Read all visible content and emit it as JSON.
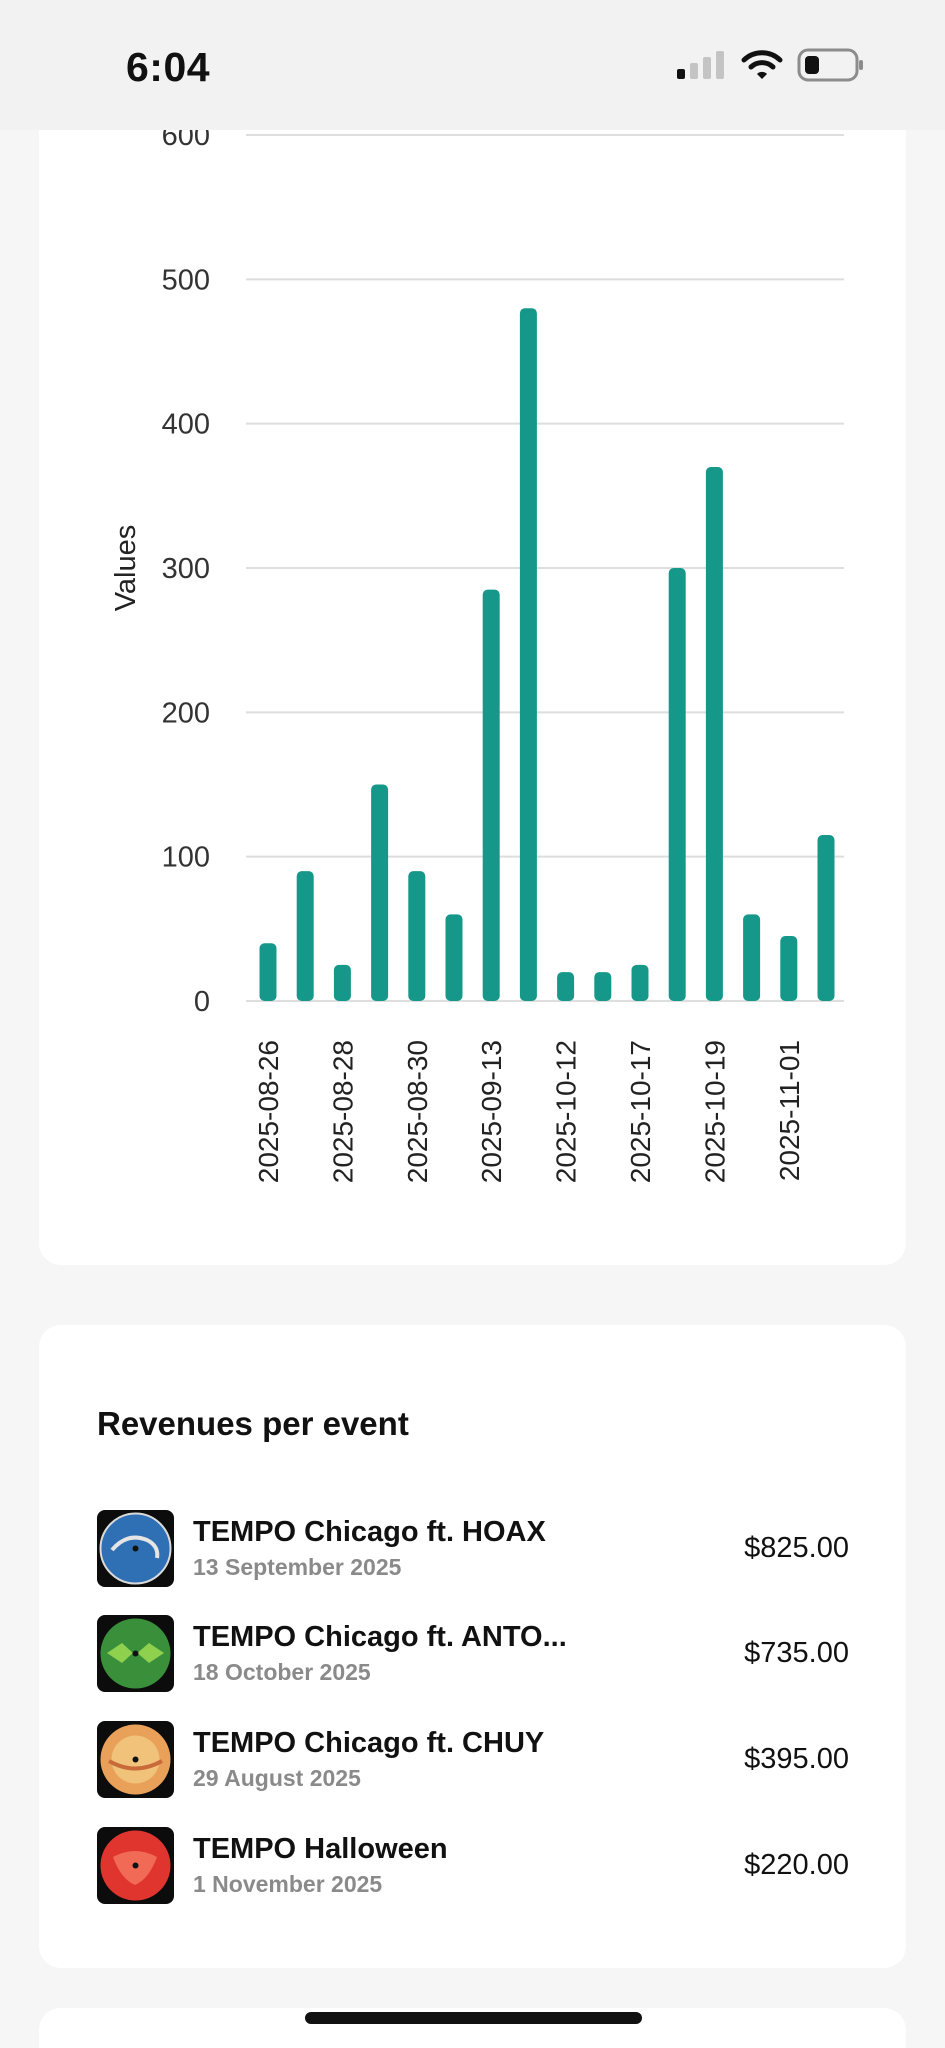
{
  "status_bar": {
    "time": "6:04"
  },
  "chart_data": {
    "type": "bar",
    "ylabel": "Values",
    "xlabel": "",
    "ylim": [
      0,
      600
    ],
    "yticks": [
      0,
      100,
      200,
      300,
      400,
      500,
      600
    ],
    "grid": true,
    "bar_color": "#15978a",
    "categories": [
      "2025-08-26",
      "",
      "2025-08-28",
      "",
      "2025-08-30",
      "",
      "2025-09-13",
      "",
      "2025-10-12",
      "",
      "2025-10-17",
      "",
      "2025-10-19",
      "",
      "2025-11-01",
      ""
    ],
    "values": [
      40,
      90,
      25,
      150,
      90,
      60,
      285,
      480,
      20,
      20,
      25,
      300,
      370,
      60,
      45,
      115
    ],
    "tick_labels": [
      "2025-08-26",
      "2025-08-28",
      "2025-08-30",
      "2025-09-13",
      "2025-10-12",
      "2025-10-17",
      "2025-10-19",
      "2025-11-01"
    ]
  },
  "revenues": {
    "title": "Revenues per event",
    "events": [
      {
        "name": "TEMPO Chicago ft. HOAX",
        "date": "13 September 2025",
        "amount": "$825.00",
        "thumb_color": "#2f6fb3"
      },
      {
        "name": "TEMPO Chicago ft. ANTO...",
        "date": "18 October 2025",
        "amount": "$735.00",
        "thumb_color": "#3a8f3a"
      },
      {
        "name": "TEMPO Chicago ft. CHUY",
        "date": "29 August 2025",
        "amount": "$395.00",
        "thumb_color": "#e9a15a"
      },
      {
        "name": "TEMPO Halloween",
        "date": "1 November 2025",
        "amount": "$220.00",
        "thumb_color": "#e0352f"
      }
    ]
  }
}
